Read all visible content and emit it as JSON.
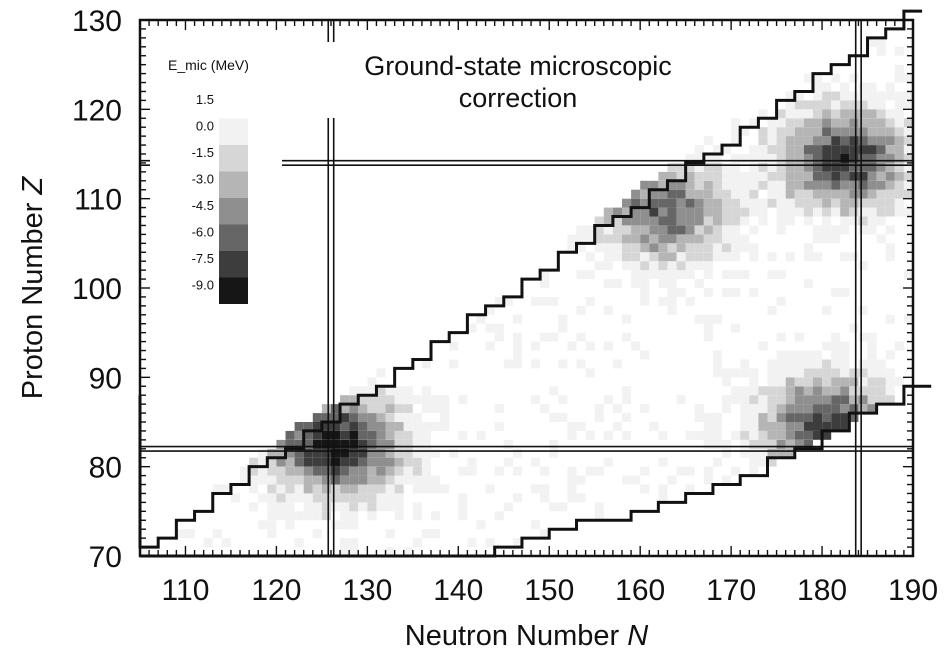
{
  "chart_data": {
    "type": "heatmap",
    "title": "Ground-state microscopic\ncorrection",
    "xlabel": "Neutron Number N",
    "xlabel_text": "Neutron Number ",
    "xlabel_var": "N",
    "ylabel_text": "Proton Number ",
    "ylabel_var": "Z",
    "xlim": [
      105,
      190
    ],
    "ylim": [
      70,
      130
    ],
    "xticks": [
      110,
      120,
      130,
      140,
      150,
      160,
      170,
      180,
      190
    ],
    "yticks": [
      70,
      80,
      90,
      100,
      110,
      120,
      130
    ],
    "magic_numbers": {
      "Z": [
        82,
        114
      ],
      "N": [
        126,
        184
      ]
    },
    "legend": {
      "title": "E_mic (MeV)",
      "levels": [
        "1.5",
        "0.0",
        "-1.5",
        "-3.0",
        "-4.5",
        "-6.0",
        "-7.5",
        "-9.0"
      ],
      "colors": [
        "#ffffff",
        "#f2f2f2",
        "#d6d6d6",
        "#b5b5b5",
        "#8f8f8f",
        "#666666",
        "#3d3d3d",
        "#161616"
      ]
    },
    "shell_correction_minima": [
      {
        "N": 126,
        "Z": 82,
        "value": -9.0
      },
      {
        "N": 182,
        "Z": 114,
        "value": -7.5
      },
      {
        "N": 180,
        "Z": 84,
        "value": -7.5
      },
      {
        "N": 162,
        "Z": 108,
        "value": -6.0
      }
    ],
    "grid": false,
    "legend_position": "top-left"
  }
}
